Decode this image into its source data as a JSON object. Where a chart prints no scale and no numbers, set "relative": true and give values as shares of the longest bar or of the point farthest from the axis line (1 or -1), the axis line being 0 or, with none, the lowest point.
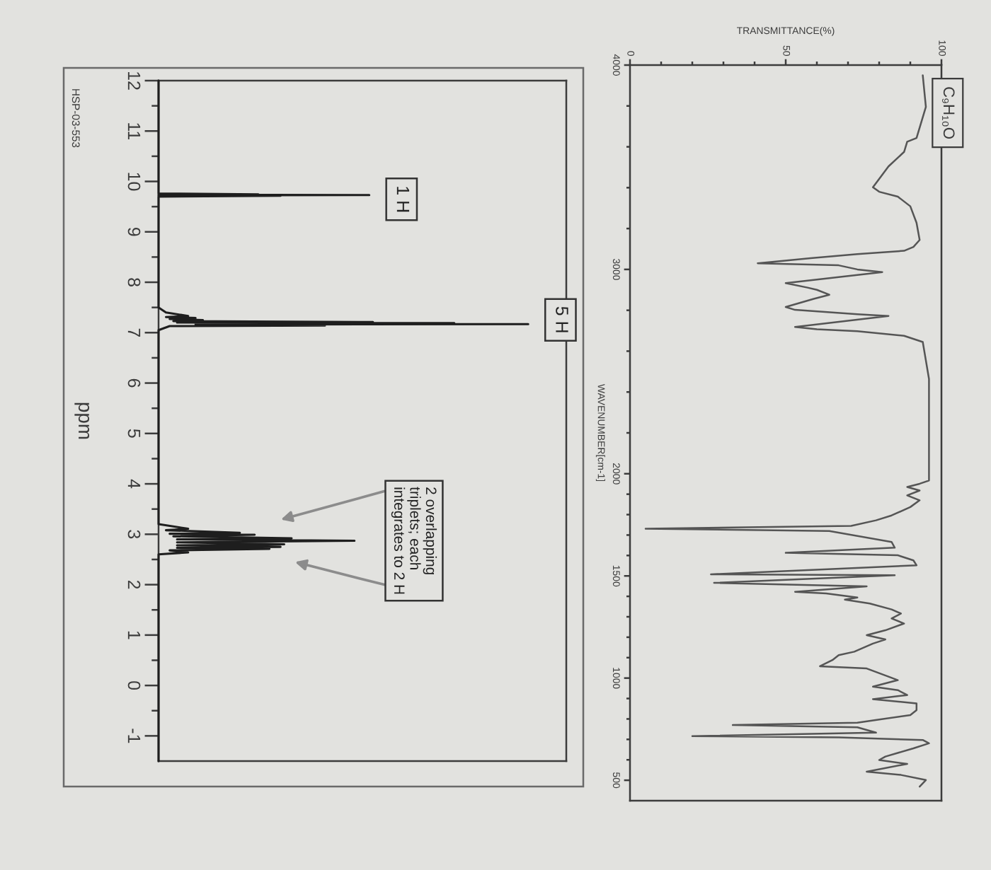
{
  "chart_data": [
    {
      "type": "line",
      "orientation": "horizontal",
      "relative": true,
      "ylabel": "ppm",
      "tick_labels": "y",
      "ylim": [
        -1.5,
        12
      ],
      "yticks": [
        12,
        {
          "value": 11.5,
          "label": null
        },
        11,
        {
          "value": 10.5,
          "label": null
        },
        10,
        {
          "value": 9.5,
          "label": null
        },
        9,
        {
          "value": 8.5,
          "label": null
        },
        8,
        {
          "value": 7.5,
          "label": null
        },
        7,
        {
          "value": 6.5,
          "label": null
        },
        6,
        {
          "value": 5.5,
          "label": null
        },
        5,
        {
          "value": 4.5,
          "label": null
        },
        4,
        {
          "value": 3.5,
          "label": null
        },
        3,
        {
          "value": 2.5,
          "label": null
        },
        2,
        {
          "value": 1.5,
          "label": null
        },
        1,
        {
          "value": 0.5,
          "label": null
        },
        0,
        {
          "value": -0.5,
          "label": null
        },
        -1
      ],
      "x": [
        12,
        9.76,
        9.745,
        9.738,
        9.73,
        9.722,
        9.715,
        9.7,
        7.5,
        7.4,
        7.33,
        7.31,
        7.29,
        7.27,
        7.25,
        7.23,
        7.21,
        7.2,
        7.19,
        7.18,
        7.17,
        7.16,
        7.14,
        7.13,
        7.05,
        3.2,
        3.11,
        3.08,
        3.03,
        3.01,
        2.99,
        2.96,
        2.92,
        2.9,
        2.87,
        2.84,
        2.8,
        2.78,
        2.75,
        2.73,
        2.71,
        2.68,
        2.64,
        2.6,
        -1.5
      ],
      "values": [
        0,
        0,
        0.27,
        0,
        0.57,
        0,
        0.33,
        0,
        0,
        0.02,
        0.08,
        0.02,
        0.1,
        0.03,
        0.12,
        0.04,
        0.58,
        0.05,
        0.8,
        0.1,
        1.0,
        0.1,
        0.45,
        0.03,
        0,
        0,
        0.08,
        0.02,
        0.22,
        0.03,
        0.26,
        0.04,
        0.36,
        0.05,
        0.53,
        0.05,
        0.34,
        0.05,
        0.33,
        0.05,
        0.3,
        0.03,
        0.08,
        0,
        0
      ],
      "color": "#1e1e1e",
      "annotations": [
        {
          "text": "1 H",
          "x": 0.57,
          "y": 9.73
        },
        {
          "text": "5 H",
          "x": 1.0,
          "y": 7.17
        },
        {
          "text": "2 overlapping\ntriplets; each\nintegrates to 2 H",
          "x": 0.53,
          "y": 2.87
        },
        "HSP-03-553"
      ]
    },
    {
      "type": "line",
      "orientation": "horizontal",
      "title": "C₉H₁₀O",
      "xlabel": "TRANSMITTANCE(%)",
      "ylabel": "WAVENUMBER[cm-1]",
      "ylim": [
        400,
        4000
      ],
      "yticks": [
        4000,
        {
          "value": 3800,
          "label": null
        },
        {
          "value": 3600,
          "label": null
        },
        {
          "value": 3400,
          "label": null
        },
        {
          "value": 3200,
          "label": null
        },
        3000,
        {
          "value": 2800,
          "label": null
        },
        {
          "value": 2600,
          "label": null
        },
        {
          "value": 2400,
          "label": null
        },
        {
          "value": 2200,
          "label": null
        },
        2000,
        {
          "value": 1900,
          "label": null
        },
        {
          "value": 1800,
          "label": null
        },
        {
          "value": 1700,
          "label": null
        },
        {
          "value": 1600,
          "label": null
        },
        1500,
        {
          "value": 1400,
          "label": null
        },
        {
          "value": 1300,
          "label": null
        },
        {
          "value": 1200,
          "label": null
        },
        {
          "value": 1100,
          "label": null
        },
        1000,
        {
          "value": 900,
          "label": null
        },
        {
          "value": 800,
          "label": null
        },
        {
          "value": 700,
          "label": null
        },
        {
          "value": 600,
          "label": null
        },
        500
      ],
      "xlim": [
        0,
        100
      ],
      "xticks": [
        0,
        {
          "value": 10,
          "label": null
        },
        {
          "value": 20,
          "label": null
        },
        {
          "value": 30,
          "label": null
        },
        {
          "value": 40,
          "label": null
        },
        50,
        {
          "value": 60,
          "label": null
        },
        {
          "value": 70,
          "label": null
        },
        {
          "value": 80,
          "label": null
        },
        {
          "value": 90,
          "label": null
        },
        100
      ],
      "x": [
        3950,
        3795,
        3643,
        3625,
        3575,
        3504,
        3402,
        3380,
        3356,
        3309,
        3228,
        3144,
        3110,
        3091,
        3075,
        3055,
        3030,
        3020,
        3000,
        2987,
        2933,
        2911,
        2900,
        2876,
        2856,
        2816,
        2802,
        2781,
        2772,
        2718,
        2707,
        2698,
        2675,
        2645,
        2464,
        2131,
        1967,
        1951,
        1935,
        1918,
        1894,
        1870,
        1837,
        1796,
        1772,
        1745,
        1731,
        1720,
        1666,
        1638,
        1613,
        1601,
        1576,
        1552,
        1508,
        1503,
        1466,
        1449,
        1422,
        1414,
        1394,
        1384,
        1365,
        1336,
        1316,
        1292,
        1267,
        1234,
        1210,
        1189,
        1169,
        1129,
        1112,
        1088,
        1058,
        1047,
        1007,
        990,
        958,
        941,
        917,
        897,
        876,
        843,
        819,
        782,
        770,
        759,
        733,
        716,
        710,
        697,
        681,
        656,
        616,
        599,
        580,
        542,
        526,
        501,
        469
      ],
      "values": [
        94,
        95,
        92,
        89,
        88,
        83,
        78,
        80,
        86,
        90,
        92,
        93,
        91,
        88,
        73,
        58,
        41,
        67,
        73,
        81,
        50,
        57,
        60,
        64,
        59,
        50,
        53,
        73,
        83,
        53,
        60,
        73,
        88,
        94,
        96,
        96,
        96,
        93,
        89,
        93,
        89,
        93,
        90,
        84,
        79,
        71,
        5,
        64,
        84,
        85,
        50,
        86,
        91,
        92,
        26,
        85,
        27,
        76,
        53,
        63,
        73,
        69,
        77,
        84,
        87,
        84,
        88,
        82,
        76,
        82,
        78,
        72,
        67,
        65,
        61,
        76,
        83,
        86,
        78,
        86,
        89,
        78,
        92,
        92,
        90,
        73,
        33,
        73,
        79,
        20,
        67,
        94,
        96,
        91,
        82,
        80,
        89,
        76,
        87,
        95,
        93
      ],
      "color": "#555555"
    }
  ]
}
